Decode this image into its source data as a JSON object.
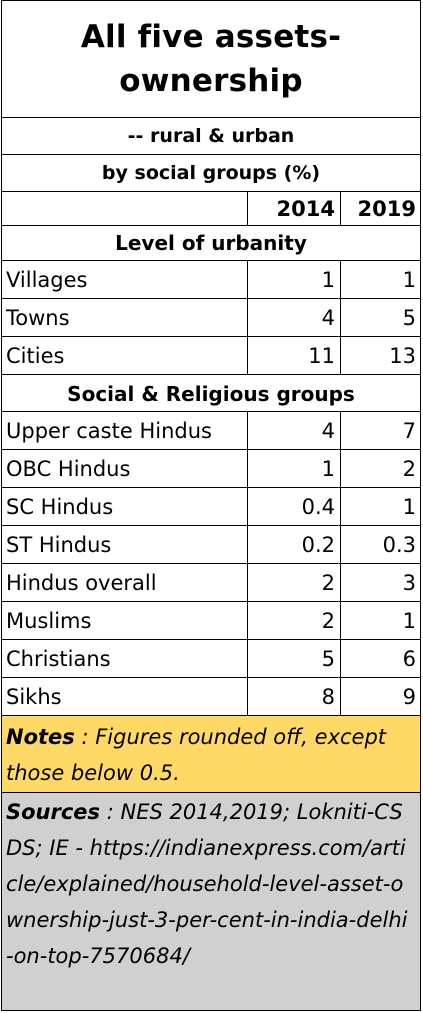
{
  "chart_data": {
    "type": "table",
    "title": [
      "All five assets-",
      "ownership"
    ],
    "subtitle_1": "-- rural & urban",
    "subtitle_2": "by social groups (%)",
    "columns": [
      "2014",
      "2019"
    ],
    "sections": [
      {
        "heading": "Level of urbanity",
        "rows": [
          {
            "label": "Villages",
            "values": [
              "1",
              "1"
            ]
          },
          {
            "label": "Towns",
            "values": [
              "4",
              "5"
            ]
          },
          {
            "label": "Cities",
            "values": [
              "11",
              "13"
            ]
          }
        ]
      },
      {
        "heading": "Social & Religious groups",
        "rows": [
          {
            "label": "Upper caste Hindus",
            "values": [
              "4",
              "7"
            ]
          },
          {
            "label": "OBC Hindus",
            "values": [
              "1",
              "2"
            ]
          },
          {
            "label": "SC Hindus",
            "values": [
              "0.4",
              "1"
            ]
          },
          {
            "label": "ST Hindus",
            "values": [
              "0.2",
              "0.3"
            ]
          },
          {
            "label": "Hindus overall",
            "values": [
              "2",
              "3"
            ]
          },
          {
            "label": "Muslims",
            "values": [
              "2",
              "1"
            ]
          },
          {
            "label": "Christians",
            "values": [
              "5",
              "6"
            ]
          },
          {
            "label": "Sikhs",
            "values": [
              "8",
              "9"
            ]
          }
        ]
      }
    ],
    "notes_label": "Notes",
    "notes_text": " : Figures rounded off, except those below 0.5.",
    "sources_label": "Sources",
    "sources_text": " : NES 2014,2019; Lokniti-CSDS; IE - https://indianexpress.com/article/explained/household-level-asset-ownership-just-3-per-cent-in-india-delhi-on-top-7570684/",
    "colors": {
      "notes_bg": "#FFD966",
      "sources_bg": "#D0D0D0",
      "grid": "#000000"
    }
  }
}
